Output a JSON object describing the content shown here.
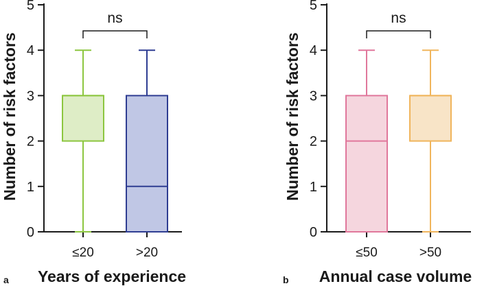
{
  "chart_data": [
    {
      "panel_label": "a",
      "type": "boxplot",
      "ylabel": "Number of risk factors",
      "xlabel": "Years of experience",
      "ylim": [
        0,
        5
      ],
      "yticks": [
        "0",
        "1",
        "2",
        "3",
        "4",
        "5"
      ],
      "significance": "ns",
      "boxes": [
        {
          "category": "≤20",
          "min": 0,
          "q1": 2,
          "median": 3,
          "q3": 3,
          "max": 4,
          "stroke": "#8cc63f",
          "fill": "#deedc6"
        },
        {
          "category": ">20",
          "min": 0,
          "q1": 0,
          "median": 1,
          "q3": 3,
          "max": 4,
          "stroke": "#2e3d92",
          "fill": "#c0c7e5"
        }
      ]
    },
    {
      "panel_label": "b",
      "type": "boxplot",
      "ylabel": "Number of risk factors",
      "xlabel": "Annual case volume",
      "ylim": [
        0,
        5
      ],
      "yticks": [
        "0",
        "1",
        "2",
        "3",
        "4",
        "5"
      ],
      "significance": "ns",
      "boxes": [
        {
          "category": "≤50",
          "min": 0,
          "q1": 0,
          "median": 2,
          "q3": 3,
          "max": 4,
          "stroke": "#e0779b",
          "fill": "#f5d6de"
        },
        {
          "category": ">50",
          "min": 0,
          "q1": 2,
          "median": 3,
          "q3": 3,
          "max": 4,
          "stroke": "#f0b55c",
          "fill": "#f8e4c7"
        }
      ]
    }
  ]
}
